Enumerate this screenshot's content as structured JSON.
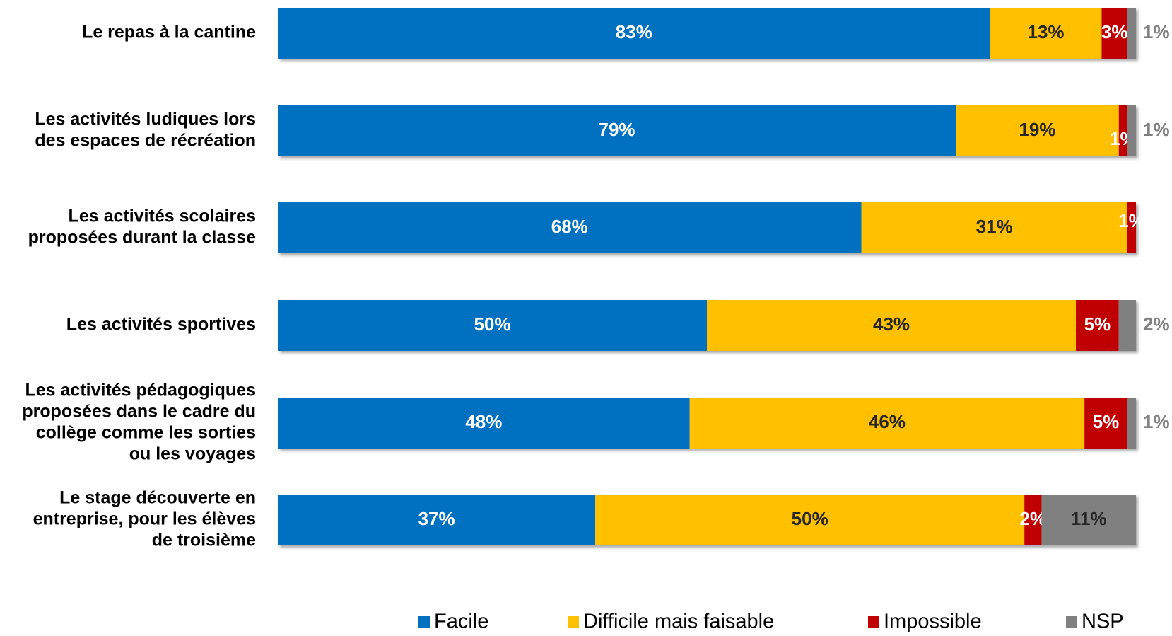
{
  "chart_data": {
    "type": "bar",
    "orientation": "horizontal",
    "stacked": true,
    "xlim": [
      0,
      100
    ],
    "grid": false,
    "legend_position": "bottom",
    "categories": [
      "Le repas à la cantine",
      "Les activités ludiques lors des espaces de récréation",
      "Les activités scolaires proposées durant la classe",
      "Les activités sportives",
      "Les activités pédagogiques proposées dans le cadre du collège comme les sorties ou les voyages",
      "Le stage découverte en entreprise, pour les élèves de troisième"
    ],
    "category_lines": [
      [
        "Le repas à la cantine"
      ],
      [
        "Les activités ludiques lors",
        "des espaces de récréation"
      ],
      [
        "Les activités scolaires",
        "proposées durant la classe"
      ],
      [
        "Les activités sportives"
      ],
      [
        "Les activités pédagogiques",
        "proposées dans le cadre du",
        "collège comme les sorties",
        "ou les voyages"
      ],
      [
        "Le stage découverte en",
        "entreprise, pour les élèves",
        "de troisième"
      ]
    ],
    "series": [
      {
        "name": "Facile",
        "color": "#0070C0",
        "label_color": "#ffffff",
        "values": [
          83,
          79,
          68,
          50,
          48,
          37
        ]
      },
      {
        "name": "Difficile mais faisable",
        "color": "#FFC000",
        "label_color": "#262626",
        "values": [
          13,
          19,
          31,
          43,
          46,
          50
        ]
      },
      {
        "name": "Impossible",
        "color": "#C00000",
        "label_color": "#ffffff",
        "values": [
          3,
          1,
          1,
          5,
          5,
          2
        ]
      },
      {
        "name": "NSP",
        "color": "#808080",
        "label_color": "#7F7F7F",
        "values": [
          1,
          1,
          0,
          2,
          1,
          11
        ]
      }
    ],
    "data_labels": [
      [
        "83%",
        "13%",
        "3%",
        "1%"
      ],
      [
        "79%",
        "19%",
        "1%",
        "1%"
      ],
      [
        "68%",
        "31%",
        "1%",
        ""
      ],
      [
        "50%",
        "43%",
        "5%",
        "2%"
      ],
      [
        "48%",
        "46%",
        "5%",
        "1%"
      ],
      [
        "37%",
        "50%",
        "2%",
        "11%"
      ]
    ]
  },
  "colors": {
    "facile": "#0070C0",
    "difficile": "#FFC000",
    "impossible": "#C00000",
    "nsp": "#808080"
  }
}
